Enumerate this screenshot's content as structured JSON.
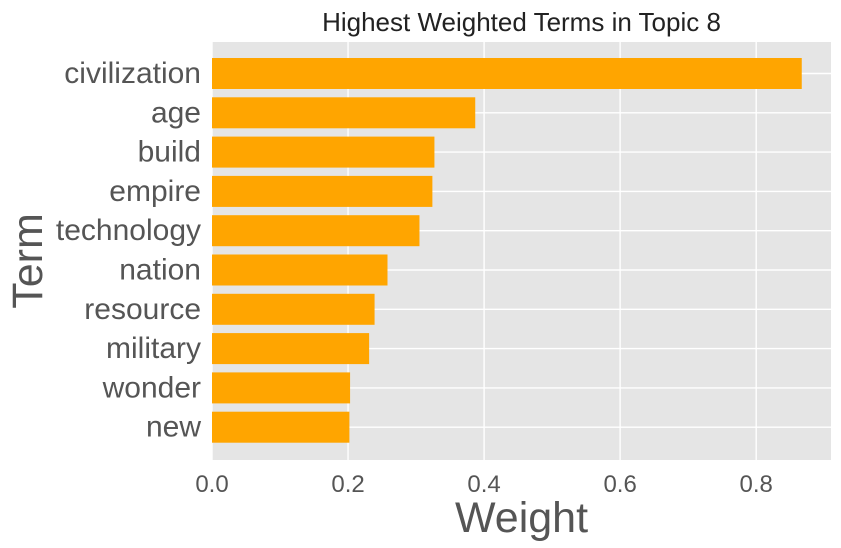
{
  "chart_data": {
    "type": "bar",
    "orientation": "horizontal",
    "title": "Highest Weighted Terms in Topic 8",
    "xlabel": "Weight",
    "ylabel": "Term",
    "categories": [
      "civilization",
      "age",
      "build",
      "empire",
      "technology",
      "nation",
      "resource",
      "military",
      "wonder",
      "new"
    ],
    "values": [
      0.867,
      0.387,
      0.327,
      0.324,
      0.305,
      0.258,
      0.239,
      0.231,
      0.203,
      0.202
    ],
    "xlim": [
      0,
      0.91
    ],
    "xticks": [
      0.0,
      0.2,
      0.4,
      0.6,
      0.8
    ],
    "xtick_labels": [
      "0.0",
      "0.2",
      "0.4",
      "0.6",
      "0.8"
    ],
    "grid": true,
    "bar_color": "#ffa500",
    "background_color": "#e5e5e5",
    "grid_color": "#ffffff"
  }
}
